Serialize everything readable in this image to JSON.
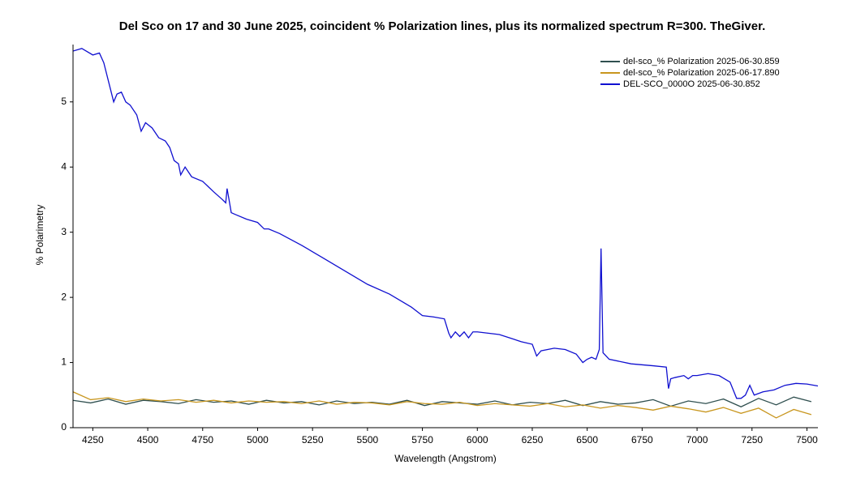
{
  "chart_data": {
    "type": "line",
    "title": "Del Sco on 17 and 30 June 2025, coincident % Polarization lines, plus its normalized spectrum R=300. TheGiver.",
    "xlabel": "Wavelength (Angstrom)",
    "ylabel": "% Polarimetry",
    "xlim": [
      4160,
      7550
    ],
    "ylim": [
      0,
      5.88
    ],
    "xticks": [
      4250,
      4500,
      4750,
      5000,
      5250,
      5500,
      5750,
      6000,
      6250,
      6500,
      6750,
      7000,
      7250,
      7500
    ],
    "yticks": [
      0,
      1,
      2,
      3,
      4,
      5
    ],
    "legend": "upper right",
    "series": [
      {
        "name": "del-sco_% Polarization 2025-06-30.859",
        "color": "#2f4f4f",
        "x": [
          4160,
          4240,
          4320,
          4400,
          4480,
          4560,
          4640,
          4720,
          4800,
          4880,
          4960,
          5040,
          5120,
          5200,
          5280,
          5360,
          5440,
          5520,
          5600,
          5680,
          5760,
          5840,
          5920,
          6000,
          6080,
          6160,
          6240,
          6320,
          6400,
          6480,
          6560,
          6640,
          6720,
          6800,
          6880,
          6960,
          7040,
          7120,
          7200,
          7280,
          7360,
          7440,
          7520
        ],
        "values": [
          0.42,
          0.38,
          0.44,
          0.36,
          0.42,
          0.4,
          0.37,
          0.43,
          0.39,
          0.41,
          0.36,
          0.42,
          0.38,
          0.4,
          0.35,
          0.41,
          0.37,
          0.39,
          0.36,
          0.42,
          0.34,
          0.4,
          0.38,
          0.36,
          0.41,
          0.35,
          0.39,
          0.37,
          0.42,
          0.34,
          0.4,
          0.36,
          0.38,
          0.43,
          0.33,
          0.41,
          0.37,
          0.44,
          0.32,
          0.45,
          0.35,
          0.47,
          0.4
        ]
      },
      {
        "name": "del-sco_% Polarization 2025-06-17.890",
        "color": "#c8961e",
        "x": [
          4160,
          4240,
          4320,
          4400,
          4480,
          4560,
          4640,
          4720,
          4800,
          4880,
          4960,
          5040,
          5120,
          5200,
          5280,
          5360,
          5440,
          5520,
          5600,
          5680,
          5760,
          5840,
          5920,
          6000,
          6080,
          6160,
          6240,
          6320,
          6400,
          6480,
          6560,
          6640,
          6720,
          6800,
          6880,
          6960,
          7040,
          7120,
          7200,
          7280,
          7360,
          7440,
          7520
        ],
        "values": [
          0.55,
          0.43,
          0.46,
          0.4,
          0.44,
          0.41,
          0.43,
          0.39,
          0.42,
          0.38,
          0.41,
          0.39,
          0.4,
          0.37,
          0.41,
          0.36,
          0.39,
          0.38,
          0.35,
          0.4,
          0.37,
          0.36,
          0.39,
          0.34,
          0.37,
          0.35,
          0.33,
          0.37,
          0.32,
          0.35,
          0.3,
          0.34,
          0.31,
          0.27,
          0.33,
          0.29,
          0.24,
          0.31,
          0.22,
          0.3,
          0.15,
          0.28,
          0.2
        ]
      },
      {
        "name": "DEL-SCO_0000O 2025-06-30.852",
        "color": "#1010d0",
        "x": [
          4160,
          4200,
          4250,
          4280,
          4300,
          4330,
          4345,
          4360,
          4380,
          4400,
          4420,
          4450,
          4470,
          4490,
          4520,
          4550,
          4580,
          4600,
          4620,
          4640,
          4650,
          4670,
          4700,
          4750,
          4800,
          4840,
          4855,
          4861,
          4870,
          4880,
          4900,
          4950,
          5000,
          5030,
          5050,
          5100,
          5200,
          5300,
          5400,
          5500,
          5600,
          5700,
          5750,
          5800,
          5850,
          5870,
          5880,
          5900,
          5920,
          5940,
          5960,
          5980,
          6000,
          6100,
          6200,
          6250,
          6270,
          6290,
          6350,
          6400,
          6450,
          6480,
          6500,
          6520,
          6540,
          6555,
          6563,
          6572,
          6600,
          6700,
          6800,
          6860,
          6870,
          6880,
          6900,
          6940,
          6960,
          6980,
          7000,
          7050,
          7100,
          7150,
          7180,
          7200,
          7220,
          7240,
          7260,
          7300,
          7350,
          7400,
          7450,
          7500,
          7550
        ],
        "values": [
          5.78,
          5.82,
          5.72,
          5.75,
          5.6,
          5.2,
          5.0,
          5.12,
          5.15,
          5.0,
          4.95,
          4.8,
          4.55,
          4.68,
          4.6,
          4.45,
          4.4,
          4.3,
          4.1,
          4.05,
          3.88,
          4.0,
          3.85,
          3.78,
          3.62,
          3.5,
          3.45,
          3.67,
          3.5,
          3.3,
          3.27,
          3.2,
          3.15,
          3.05,
          3.05,
          2.98,
          2.8,
          2.6,
          2.4,
          2.2,
          2.05,
          1.85,
          1.72,
          1.7,
          1.67,
          1.45,
          1.38,
          1.47,
          1.4,
          1.47,
          1.38,
          1.47,
          1.47,
          1.43,
          1.32,
          1.28,
          1.1,
          1.18,
          1.22,
          1.2,
          1.13,
          1.0,
          1.05,
          1.08,
          1.05,
          1.2,
          2.75,
          1.15,
          1.05,
          0.98,
          0.95,
          0.93,
          0.6,
          0.75,
          0.77,
          0.8,
          0.75,
          0.8,
          0.8,
          0.83,
          0.8,
          0.7,
          0.45,
          0.45,
          0.5,
          0.65,
          0.5,
          0.55,
          0.58,
          0.65,
          0.68,
          0.67,
          0.64
        ]
      }
    ]
  }
}
